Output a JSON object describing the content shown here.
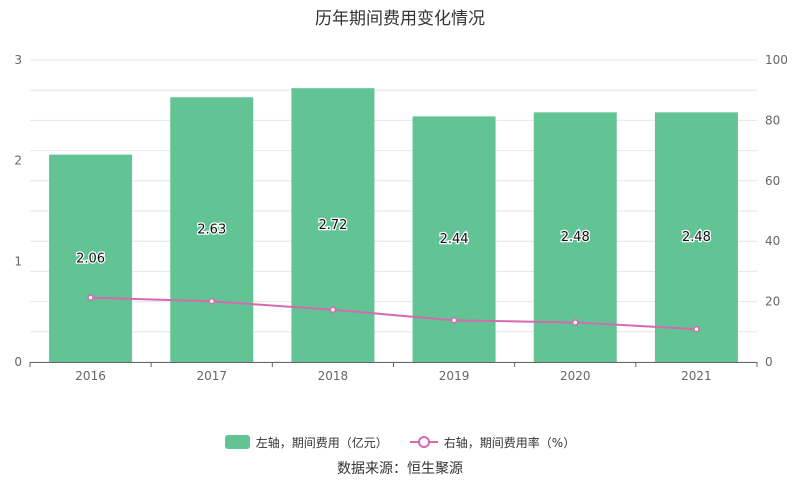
{
  "title": "历年期间费用变化情况",
  "source": "数据来源：恒生聚源",
  "colors": {
    "bar": "#62c394",
    "line": "#d56ab0",
    "grid": "#e6e6e6",
    "axis": "#666666"
  },
  "chart_data": {
    "type": "bar",
    "categories": [
      "2016",
      "2017",
      "2018",
      "2019",
      "2020",
      "2021"
    ],
    "series": [
      {
        "name": "左轴，期间费用（亿元）",
        "type": "bar",
        "axis": "left",
        "values": [
          2.06,
          2.63,
          2.72,
          2.44,
          2.48,
          2.48
        ],
        "labels": [
          "2.06",
          "2.63",
          "2.72",
          "2.44",
          "2.48",
          "2.48"
        ]
      },
      {
        "name": "右轴，期间费用率（%）",
        "type": "line",
        "axis": "right",
        "values": [
          21.3,
          20.1,
          17.3,
          13.8,
          13.1,
          10.9
        ]
      }
    ],
    "left_axis": {
      "min": 0,
      "max": 3,
      "ticks": [
        "0",
        "1",
        "2",
        "3"
      ]
    },
    "right_axis": {
      "min": 0,
      "max": 100,
      "ticks": [
        "0",
        "20",
        "40",
        "60",
        "80",
        "100"
      ]
    },
    "legend_position": "bottom"
  }
}
